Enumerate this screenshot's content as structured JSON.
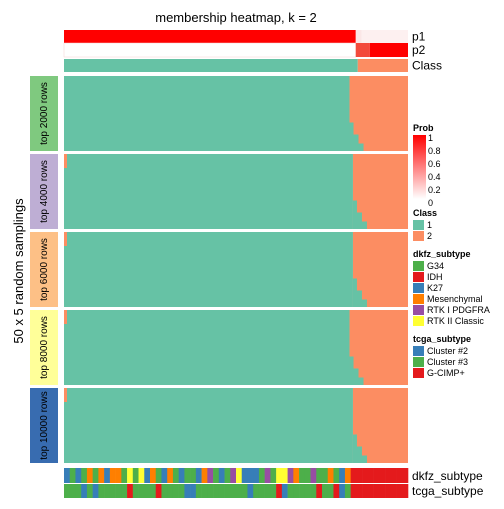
{
  "chart_data": {
    "type": "heatmap",
    "title": "membership heatmap, k = 2",
    "y_axis_label": "50 x 5 random samplings",
    "row_annotations": [
      "p1",
      "p2",
      "Class"
    ],
    "bottom_annotations": [
      "dkfz_subtype",
      "tcga_subtype"
    ],
    "row_groups": [
      {
        "label": "top 2000 rows",
        "color": "#7fc97f",
        "class2_fraction": 0.17
      },
      {
        "label": "top 4000 rows",
        "color": "#beaed4",
        "class2_fraction": 0.16
      },
      {
        "label": "top 6000 rows",
        "color": "#fdc086",
        "class2_fraction": 0.16
      },
      {
        "label": "top 8000 rows",
        "color": "#ffff99",
        "class2_fraction": 0.17
      },
      {
        "label": "top 10000 rows",
        "color": "#386cb0",
        "class2_fraction": 0.16
      }
    ],
    "columns": {
      "n": 60,
      "n_class1": 50,
      "n_class2": 10
    },
    "legend": {
      "prob": {
        "title": "Prob",
        "ticks": [
          "1",
          "0.8",
          "0.6",
          "0.4",
          "0.2",
          "0"
        ],
        "color_high": "#ff0000",
        "color_low": "#ffffff"
      },
      "class": {
        "title": "Class",
        "items": [
          {
            "label": "1",
            "color": "#66c2a5"
          },
          {
            "label": "2",
            "color": "#fc8d62"
          }
        ]
      },
      "dkfz_subtype": {
        "title": "dkfz_subtype",
        "items": [
          {
            "label": "G34",
            "color": "#4daf4a"
          },
          {
            "label": "IDH",
            "color": "#e41a1c"
          },
          {
            "label": "K27",
            "color": "#377eb8"
          },
          {
            "label": "Mesenchymal",
            "color": "#ff7f00"
          },
          {
            "label": "RTK I PDGFRA",
            "color": "#984ea3"
          },
          {
            "label": "RTK II Classic",
            "color": "#ffff33"
          }
        ]
      },
      "tcga_subtype": {
        "title": "tcga_subtype",
        "items": [
          {
            "label": "Cluster #2",
            "color": "#377eb8"
          },
          {
            "label": "Cluster #3",
            "color": "#4daf4a"
          },
          {
            "label": "G-CIMP+",
            "color": "#e41a1c"
          }
        ]
      }
    }
  }
}
